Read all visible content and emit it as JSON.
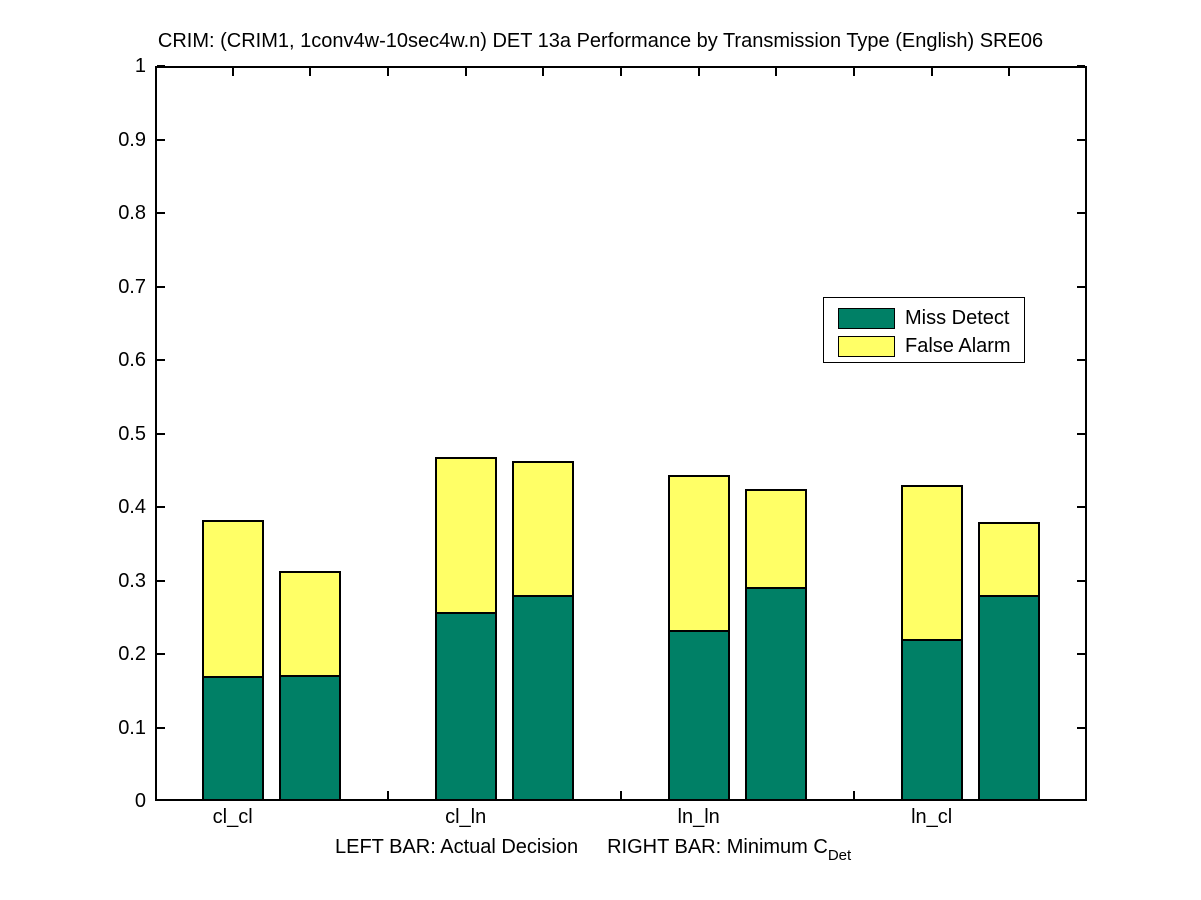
{
  "chart_data": {
    "type": "bar",
    "stacked": true,
    "title": "CRIM: (CRIM1, 1conv4w-10sec4w.n) DET 13a Performance by Transmission Type (English) SRE06",
    "categories": [
      "cl_cl",
      "cl_ln",
      "ln_ln",
      "ln_cl"
    ],
    "bar_semantics": {
      "left_bar": "Actual Decision",
      "right_bar": "Minimum C_Det"
    },
    "series": [
      {
        "name": "Miss Detect",
        "color": "#008066",
        "actual_decision": [
          0.168,
          0.255,
          0.23,
          0.218
        ],
        "minimum_cdet": [
          0.169,
          0.277,
          0.288,
          0.277
        ]
      },
      {
        "name": "False Alarm",
        "color": "#ffff66",
        "actual_decision": [
          0.214,
          0.213,
          0.214,
          0.212
        ],
        "minimum_cdet": [
          0.144,
          0.185,
          0.137,
          0.102
        ]
      }
    ],
    "ylim": [
      0,
      1
    ],
    "ytick_labels": [
      "0",
      "0.1",
      "0.2",
      "0.3",
      "0.4",
      "0.5",
      "0.6",
      "0.7",
      "0.8",
      "0.9",
      "1"
    ],
    "grid": false,
    "legend_position": "upper-right-inside",
    "axis_color": "#000000",
    "xlabel_left": "LEFT BAR: Actual Decision",
    "xlabel_right": "RIGHT BAR: Minimum C",
    "xlabel_subscript": "Det"
  }
}
